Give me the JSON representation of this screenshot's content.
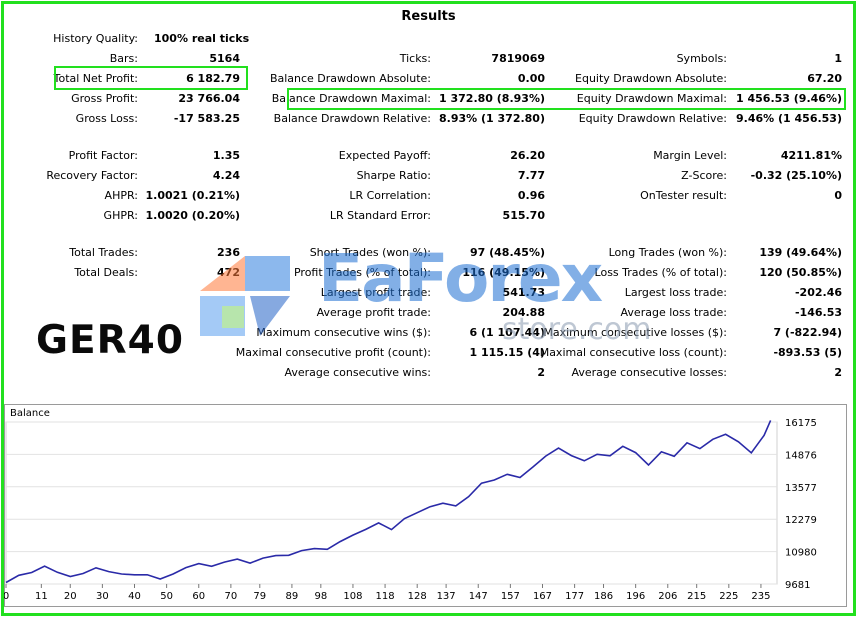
{
  "title": "Results",
  "watermark": {
    "brand": "EaForex",
    "sub": "store.com"
  },
  "overlay_label": "GER40",
  "quality": {
    "label": "History Quality:",
    "value": "100% real ticks"
  },
  "rows": [
    [
      {
        "l": "Bars:",
        "v": "5164"
      },
      {
        "l": "Ticks:",
        "v": "7819069"
      },
      {
        "l": "Symbols:",
        "v": "1"
      }
    ],
    [
      {
        "l": "Total Net Profit:",
        "v": "6 182.79"
      },
      {
        "l": "Balance Drawdown Absolute:",
        "v": "0.00"
      },
      {
        "l": "Equity Drawdown Absolute:",
        "v": "67.20"
      }
    ],
    [
      {
        "l": "Gross Profit:",
        "v": "23 766.04"
      },
      {
        "l": "Balance Drawdown Maximal:",
        "v": "1 372.80 (8.93%)"
      },
      {
        "l": "Equity Drawdown Maximal:",
        "v": "1 456.53 (9.46%)"
      }
    ],
    [
      {
        "l": "Gross Loss:",
        "v": "-17 583.25"
      },
      {
        "l": "Balance Drawdown Relative:",
        "v": "8.93% (1 372.80)"
      },
      {
        "l": "Equity Drawdown Relative:",
        "v": "9.46% (1 456.53)"
      }
    ],
    [
      {
        "l": "Profit Factor:",
        "v": "1.35"
      },
      {
        "l": "Expected Payoff:",
        "v": "26.20"
      },
      {
        "l": "Margin Level:",
        "v": "4211.81%"
      }
    ],
    [
      {
        "l": "Recovery Factor:",
        "v": "4.24"
      },
      {
        "l": "Sharpe Ratio:",
        "v": "7.77"
      },
      {
        "l": "Z-Score:",
        "v": "-0.32 (25.10%)"
      }
    ],
    [
      {
        "l": "AHPR:",
        "v": "1.0021 (0.21%)"
      },
      {
        "l": "LR Correlation:",
        "v": "0.96"
      },
      {
        "l": "OnTester result:",
        "v": "0"
      }
    ],
    [
      {
        "l": "GHPR:",
        "v": "1.0020 (0.20%)"
      },
      {
        "l": "LR Standard Error:",
        "v": "515.70"
      },
      {
        "l": "",
        "v": ""
      }
    ],
    [
      {
        "l": "Total Trades:",
        "v": "236"
      },
      {
        "l": "Short Trades (won %):",
        "v": "97 (48.45%)"
      },
      {
        "l": "Long Trades (won %):",
        "v": "139 (49.64%)"
      }
    ],
    [
      {
        "l": "Total Deals:",
        "v": "472"
      },
      {
        "l": "Profit Trades (% of total):",
        "v": "116 (49.15%)"
      },
      {
        "l": "Loss Trades (% of total):",
        "v": "120 (50.85%)"
      }
    ],
    [
      {
        "l": "",
        "v": ""
      },
      {
        "l": "Largest profit trade:",
        "v": "541.73"
      },
      {
        "l": "Largest loss trade:",
        "v": "-202.46"
      }
    ],
    [
      {
        "l": "",
        "v": ""
      },
      {
        "l": "Average profit trade:",
        "v": "204.88"
      },
      {
        "l": "Average loss trade:",
        "v": "-146.53"
      }
    ],
    [
      {
        "l": "",
        "v": ""
      },
      {
        "l": "Maximum consecutive wins ($):",
        "v": "6 (1 107.44)"
      },
      {
        "l": "Maximum consecutive losses ($):",
        "v": "7 (-822.94)"
      }
    ],
    [
      {
        "l": "",
        "v": ""
      },
      {
        "l": "Maximal consecutive profit (count):",
        "v": "1 115.15 (4)"
      },
      {
        "l": "Maximal consecutive loss (count):",
        "v": "-893.53 (5)"
      }
    ],
    [
      {
        "l": "",
        "v": ""
      },
      {
        "l": "Average consecutive wins:",
        "v": "2"
      },
      {
        "l": "Average consecutive losses:",
        "v": "2"
      }
    ]
  ],
  "chart_data": {
    "type": "line",
    "title": "Balance",
    "series": [],
    "x_ticks": [
      0,
      11,
      20,
      30,
      40,
      50,
      60,
      70,
      79,
      89,
      98,
      108,
      118,
      128,
      137,
      147,
      157,
      167,
      177,
      186,
      196,
      206,
      215,
      225,
      235
    ],
    "y_ticks": [
      9681,
      10980,
      12279,
      13577,
      14876,
      16175
    ],
    "xlim": [
      0,
      240
    ],
    "ylim": [
      9681,
      16175
    ],
    "line_color": "#2a2aa8",
    "x": [
      0,
      4,
      8,
      12,
      16,
      20,
      24,
      28,
      32,
      36,
      40,
      44,
      48,
      52,
      56,
      60,
      64,
      68,
      72,
      76,
      80,
      84,
      88,
      92,
      96,
      100,
      104,
      108,
      112,
      116,
      120,
      124,
      128,
      132,
      136,
      140,
      144,
      148,
      152,
      156,
      160,
      164,
      168,
      172,
      176,
      180,
      184,
      188,
      192,
      196,
      200,
      204,
      208,
      212,
      216,
      220,
      224,
      228,
      232,
      236,
      238
    ],
    "y": [
      9740,
      10030,
      10140,
      10400,
      10150,
      9980,
      10100,
      10330,
      10180,
      10080,
      10050,
      10050,
      9880,
      10080,
      10340,
      10500,
      10390,
      10560,
      10680,
      10520,
      10720,
      10820,
      10830,
      11020,
      11100,
      11070,
      11380,
      11640,
      11870,
      12130,
      11860,
      12300,
      12540,
      12780,
      12920,
      12810,
      13180,
      13720,
      13850,
      14080,
      13950,
      14370,
      14810,
      15130,
      14830,
      14620,
      14880,
      14820,
      15200,
      14950,
      14450,
      14980,
      14800,
      15340,
      15110,
      15480,
      15680,
      15380,
      14940,
      15640,
      16240
    ]
  }
}
